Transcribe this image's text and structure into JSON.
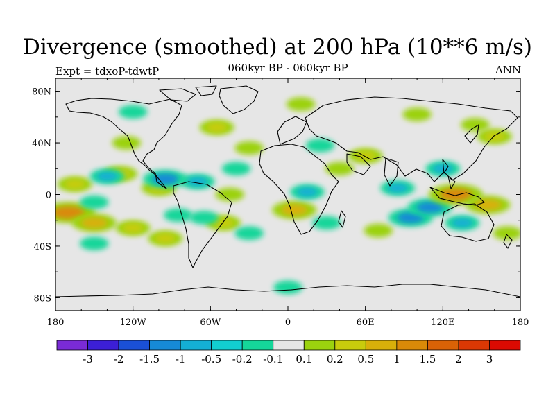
{
  "header": {
    "title": "Divergence (smoothed) at 200 hPa (10**6 m/s)",
    "left_label": "Expt = tdxoP-tdwtP",
    "center_label": "060kyr BP - 060kyr BP",
    "right_label": "ANN"
  },
  "map": {
    "projection": "cylindrical-equidistant",
    "lon_range": [
      -180,
      180
    ],
    "lat_range": [
      -90,
      90
    ],
    "lon_ticks": [
      {
        "value": -180,
        "label": "180"
      },
      {
        "value": -120,
        "label": "120W"
      },
      {
        "value": -60,
        "label": "60W"
      },
      {
        "value": 0,
        "label": "0"
      },
      {
        "value": 60,
        "label": "60E"
      },
      {
        "value": 120,
        "label": "120E"
      },
      {
        "value": 180,
        "label": "180"
      }
    ],
    "lat_ticks": [
      {
        "value": 80,
        "label": "80N"
      },
      {
        "value": 40,
        "label": "40N"
      },
      {
        "value": 0,
        "label": "0"
      },
      {
        "value": -40,
        "label": "40S"
      },
      {
        "value": -80,
        "label": "80S"
      }
    ],
    "background_color": "#e6e6e6",
    "coastline_color": "#000000",
    "features": [
      {
        "lon": -170,
        "lat": -14,
        "level": 1.5
      },
      {
        "lon": -150,
        "lat": -22,
        "level": 1
      },
      {
        "lon": -120,
        "lat": -26,
        "level": 0.5
      },
      {
        "lon": -95,
        "lat": -34,
        "level": 0.5
      },
      {
        "lon": -165,
        "lat": 8,
        "level": 0.5
      },
      {
        "lon": -130,
        "lat": 16,
        "level": 0.5
      },
      {
        "lon": -100,
        "lat": 5,
        "level": 0.5
      },
      {
        "lon": -125,
        "lat": 40,
        "level": 0.2
      },
      {
        "lon": -95,
        "lat": 12,
        "level": -1
      },
      {
        "lon": -140,
        "lat": 14,
        "level": -0.5
      },
      {
        "lon": -150,
        "lat": -6,
        "level": -0.2
      },
      {
        "lon": -150,
        "lat": -38,
        "level": -0.2
      },
      {
        "lon": -85,
        "lat": -16,
        "level": -0.2
      },
      {
        "lon": -70,
        "lat": 10,
        "level": -0.5
      },
      {
        "lon": -55,
        "lat": 52,
        "level": 0.5
      },
      {
        "lon": -30,
        "lat": 36,
        "level": 0.2
      },
      {
        "lon": -40,
        "lat": 20,
        "level": -0.2
      },
      {
        "lon": -45,
        "lat": 0,
        "level": 0.2
      },
      {
        "lon": -50,
        "lat": -22,
        "level": 0.5
      },
      {
        "lon": -65,
        "lat": -18,
        "level": -0.2
      },
      {
        "lon": -30,
        "lat": -30,
        "level": -0.2
      },
      {
        "lon": 5,
        "lat": -12,
        "level": 1
      },
      {
        "lon": 15,
        "lat": 2,
        "level": -0.5
      },
      {
        "lon": 30,
        "lat": -22,
        "level": -0.2
      },
      {
        "lon": 10,
        "lat": 70,
        "level": 0.2
      },
      {
        "lon": 25,
        "lat": 38,
        "level": -0.2
      },
      {
        "lon": 40,
        "lat": 20,
        "level": 0.2
      },
      {
        "lon": 60,
        "lat": 30,
        "level": 0.5
      },
      {
        "lon": 70,
        "lat": -28,
        "level": 0.2
      },
      {
        "lon": 85,
        "lat": 5,
        "level": -0.5
      },
      {
        "lon": 95,
        "lat": -18,
        "level": -1
      },
      {
        "lon": 110,
        "lat": -10,
        "level": -1
      },
      {
        "lon": 120,
        "lat": 20,
        "level": -0.5
      },
      {
        "lon": 130,
        "lat": 0,
        "level": 1.5
      },
      {
        "lon": 155,
        "lat": -8,
        "level": 1
      },
      {
        "lon": 160,
        "lat": 45,
        "level": 0.5
      },
      {
        "lon": 145,
        "lat": 54,
        "level": 0.2
      },
      {
        "lon": 135,
        "lat": -22,
        "level": -0.5
      },
      {
        "lon": 170,
        "lat": -30,
        "level": 0.2
      },
      {
        "lon": 0,
        "lat": -72,
        "level": -0.2
      },
      {
        "lon": 100,
        "lat": 62,
        "level": 0.2
      },
      {
        "lon": -120,
        "lat": 64,
        "level": -0.2
      }
    ]
  },
  "colorbar": {
    "colors": [
      "#7a2bd6",
      "#3c1fd6",
      "#1a50d6",
      "#168ad6",
      "#14afd4",
      "#12cfd0",
      "#15d69a",
      "#e6e6e6",
      "#9bd20e",
      "#c8cc0c",
      "#d8b00a",
      "#d98a08",
      "#d96206",
      "#da3804",
      "#dc0a02"
    ],
    "labels": [
      "-3",
      "-2",
      "-1.5",
      "-1",
      "-0.5",
      "-0.2",
      "-0.1",
      "0.1",
      "0.2",
      "0.5",
      "1",
      "1.5",
      "2",
      "3"
    ]
  }
}
